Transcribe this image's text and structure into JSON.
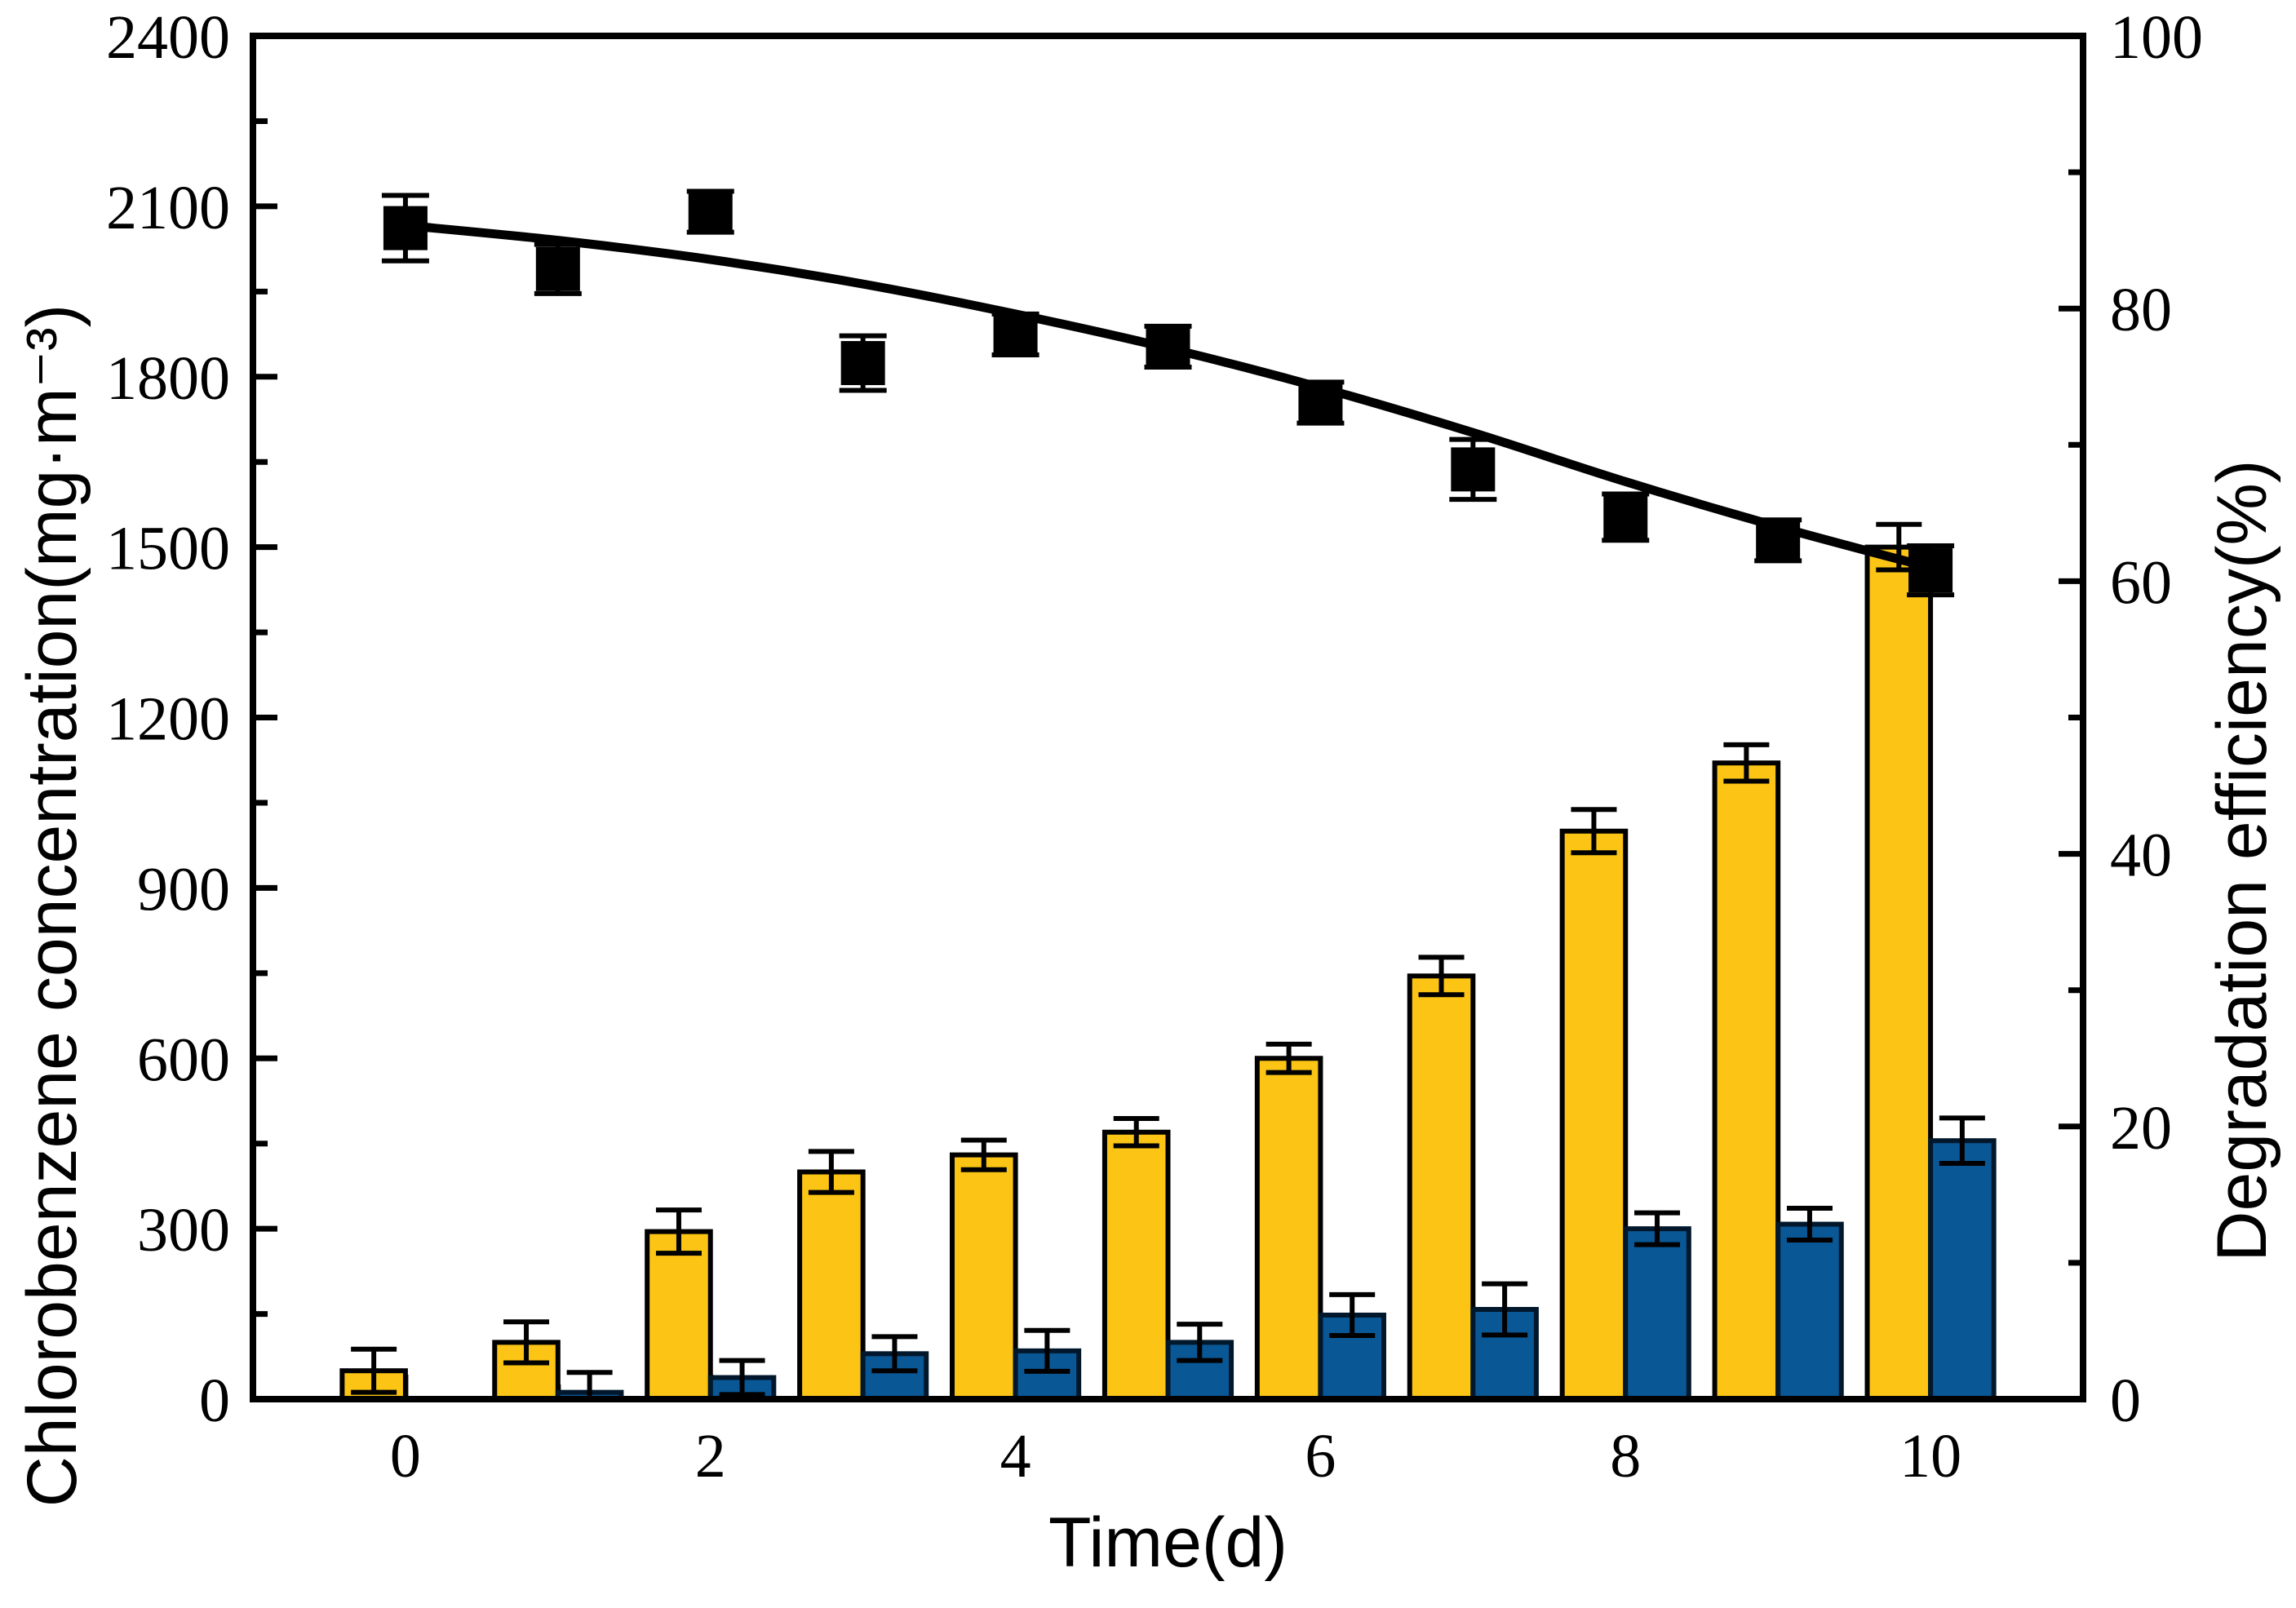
{
  "chart_data": {
    "type": "bar+line",
    "title": "",
    "xlabel": "Time(d)",
    "x": [
      0,
      1,
      2,
      3,
      4,
      5,
      6,
      7,
      8,
      9,
      10
    ],
    "x_range": [
      -1,
      11
    ],
    "x_tick_labels": [
      "0",
      "2",
      "4",
      "6",
      "8",
      "10"
    ],
    "x_major_ticks": [
      0,
      2,
      4,
      6,
      8,
      10
    ],
    "x_minor_ticks": [
      1,
      3,
      5,
      7,
      9
    ],
    "left_axis": {
      "label": "Chlorobenzene concentration(mg·m⁻³)",
      "range": [
        0,
        2400
      ],
      "major_ticks": [
        0,
        300,
        600,
        900,
        1200,
        1500,
        1800,
        2100,
        2400
      ],
      "tick_labels": [
        "0",
        "300",
        "600",
        "900",
        "1200",
        "1500",
        "1800",
        "2100",
        "2400"
      ],
      "minor_step": 150
    },
    "right_axis": {
      "label": "Degradation efficiency(%)",
      "range": [
        0,
        100
      ],
      "major_ticks": [
        0,
        20,
        40,
        60,
        80,
        100
      ],
      "tick_labels": [
        "0",
        "20",
        "40",
        "60",
        "80",
        "100"
      ],
      "minor_step": 10
    },
    "grid": false,
    "legend": "none",
    "bar_width_days": 0.415,
    "series": [
      {
        "name": "inlet-chlorobenzene-concentration-bars",
        "type": "bar",
        "axis": "left",
        "align": "left-of-tick",
        "color": "#FCC515",
        "border_color": "#000000",
        "values": [
          50,
          100,
          295,
          400,
          430,
          470,
          600,
          745,
          1000,
          1120,
          1500
        ],
        "errors": [
          38,
          36,
          38,
          36,
          26,
          24,
          25,
          33,
          38,
          32,
          40
        ]
      },
      {
        "name": "outlet-chlorobenzene-concentration-bars",
        "type": "bar",
        "axis": "left",
        "align": "right-of-tick",
        "color": "#0A5795",
        "border_color": "#01172B",
        "values": [
          0,
          12,
          38,
          80,
          85,
          100,
          148,
          158,
          300,
          308,
          455
        ],
        "errors": [
          0,
          35,
          30,
          30,
          36,
          32,
          36,
          45,
          28,
          28,
          40
        ]
      },
      {
        "name": "degradation-efficiency-points",
        "type": "scatter-square",
        "axis": "right",
        "color": "#000000",
        "values": [
          85.9,
          82.9,
          87.1,
          76.0,
          78.1,
          77.2,
          73.1,
          68.2,
          64.7,
          63.0,
          60.8
        ],
        "errors": [
          2.4,
          1.8,
          1.5,
          2.0,
          1.5,
          1.5,
          1.5,
          2.2,
          1.7,
          1.5,
          1.8
        ]
      },
      {
        "name": "degradation-efficiency-trend-line",
        "type": "smooth-line",
        "axis": "right",
        "color": "#000000",
        "values": [
          86.1,
          85.0,
          83.6,
          81.8,
          79.6,
          77.1,
          74.2,
          70.9,
          67.3,
          64.0,
          61.0
        ]
      }
    ]
  }
}
